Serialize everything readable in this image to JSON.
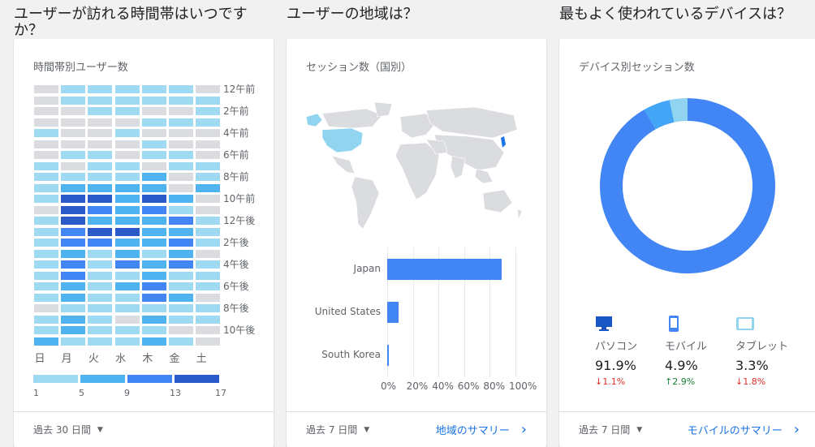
{
  "sections": [
    {
      "title": "ユーザーが訪れる時間帯はいつですか？"
    },
    {
      "title": "ユーザーの地域は？"
    },
    {
      "title": "最もよく使われているデバイスは？"
    }
  ],
  "hourly": {
    "card_title": "時間帯別ユーザー数",
    "days": [
      "日",
      "月",
      "火",
      "水",
      "木",
      "金",
      "土"
    ],
    "hour_labels": [
      "12午前",
      "2午前",
      "4午前",
      "6午前",
      "8午前",
      "10午前",
      "12午後",
      "2午後",
      "4午後",
      "6午後",
      "8午後",
      "10午後"
    ],
    "legend_values": [
      "1",
      "5",
      "9",
      "13",
      "17"
    ],
    "colors": {
      "c0": "#dadce0",
      "c1": "#9fd9f2",
      "c2": "#4fb3f0",
      "c3": "#4285f4",
      "c4": "#2a5bc9"
    },
    "grid": [
      [
        0,
        1,
        1,
        1,
        1,
        1,
        0
      ],
      [
        0,
        1,
        1,
        1,
        1,
        1,
        1
      ],
      [
        0,
        0,
        1,
        1,
        0,
        0,
        1
      ],
      [
        0,
        0,
        0,
        0,
        1,
        1,
        1
      ],
      [
        1,
        0,
        0,
        1,
        0,
        0,
        0
      ],
      [
        0,
        0,
        0,
        0,
        1,
        0,
        0
      ],
      [
        0,
        1,
        1,
        0,
        1,
        1,
        0
      ],
      [
        1,
        0,
        1,
        1,
        0,
        1,
        1
      ],
      [
        1,
        1,
        1,
        1,
        2,
        0,
        1
      ],
      [
        1,
        2,
        2,
        2,
        2,
        0,
        2
      ],
      [
        1,
        4,
        4,
        2,
        4,
        2,
        0
      ],
      [
        0,
        4,
        3,
        2,
        3,
        1,
        0
      ],
      [
        1,
        4,
        2,
        2,
        2,
        3,
        1
      ],
      [
        1,
        3,
        4,
        4,
        2,
        2,
        1
      ],
      [
        1,
        3,
        3,
        2,
        2,
        3,
        1
      ],
      [
        1,
        2,
        1,
        2,
        1,
        2,
        0
      ],
      [
        1,
        3,
        1,
        3,
        2,
        3,
        1
      ],
      [
        1,
        3,
        1,
        1,
        2,
        1,
        1
      ],
      [
        1,
        2,
        1,
        2,
        3,
        1,
        1
      ],
      [
        1,
        2,
        1,
        1,
        3,
        2,
        0
      ],
      [
        0,
        1,
        1,
        1,
        1,
        1,
        1
      ],
      [
        1,
        2,
        1,
        0,
        2,
        1,
        1
      ],
      [
        1,
        2,
        1,
        1,
        1,
        0,
        0
      ],
      [
        2,
        1,
        1,
        1,
        2,
        1,
        0
      ]
    ],
    "footer_range": "過去 30 日間"
  },
  "geo": {
    "card_title": "セッション数（国別）",
    "chart_data": {
      "type": "bar",
      "categories": [
        "Japan",
        "United States",
        "South Korea"
      ],
      "values": [
        89,
        9,
        1
      ],
      "xlim": [
        0,
        100
      ],
      "ticks": [
        "0%",
        "20%",
        "40%",
        "60%",
        "80%",
        "100%"
      ],
      "color": "#4285f4"
    },
    "footer_range": "過去 7 日間",
    "footer_link": "地域のサマリー"
  },
  "devices": {
    "card_title": "デバイス別セッション数",
    "chart_data": {
      "type": "pie",
      "categories": [
        "パソコン",
        "モバイル",
        "タブレット"
      ],
      "values": [
        91.9,
        4.9,
        3.3
      ],
      "colors": [
        "#4285f4",
        "#42a5f5",
        "#90d4f0"
      ]
    },
    "items": [
      {
        "name": "パソコン",
        "pct": "91.9%",
        "change": "1.1%",
        "dir": "down",
        "icon": "desktop-icon"
      },
      {
        "name": "モバイル",
        "pct": "4.9%",
        "change": "2.9%",
        "dir": "up",
        "icon": "mobile-icon"
      },
      {
        "name": "タブレット",
        "pct": "3.3%",
        "change": "1.8%",
        "dir": "down",
        "icon": "tablet-icon"
      }
    ],
    "arrows": {
      "up": "↑",
      "down": "↓"
    },
    "footer_range": "過去 7 日間",
    "footer_link": "モバイルのサマリー"
  }
}
